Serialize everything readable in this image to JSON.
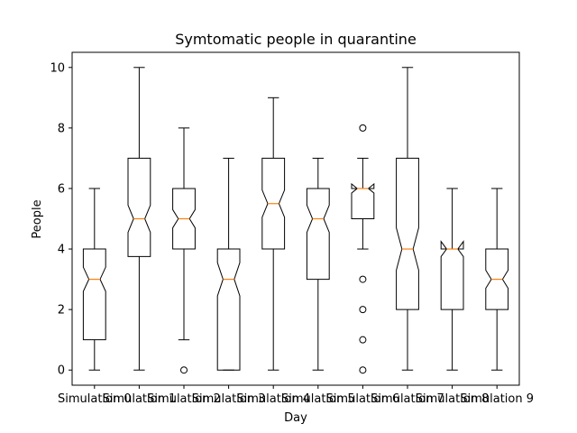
{
  "chart_data": {
    "type": "boxplot",
    "title": "Symtomatic people in quarantine",
    "xlabel": "Day",
    "ylabel": "People",
    "ylim": [
      -0.5,
      10.5
    ],
    "yticks": [
      0,
      2,
      4,
      6,
      8,
      10
    ],
    "notched": true,
    "median_color": "#ff7f0e",
    "categories": [
      "Simulation 0",
      "Simulation 1",
      "Simulation 2",
      "Simulation 3",
      "Simulation 4",
      "Simulation 5",
      "Simulation 6",
      "Simulation 7",
      "Simulation 8",
      "Simulation 9"
    ],
    "boxes": [
      {
        "q1": 1,
        "median": 3,
        "q3": 4,
        "notch_lo": 2.6,
        "notch_hi": 3.4,
        "whislo": 0,
        "whishi": 6,
        "fliers": []
      },
      {
        "q1": 3.75,
        "median": 5,
        "q3": 7,
        "notch_lo": 4.55,
        "notch_hi": 5.45,
        "whislo": 0,
        "whishi": 10,
        "fliers": []
      },
      {
        "q1": 4,
        "median": 5,
        "q3": 6,
        "notch_lo": 4.7,
        "notch_hi": 5.3,
        "whislo": 1,
        "whishi": 8,
        "fliers": [
          0
        ]
      },
      {
        "q1": 0,
        "median": 3,
        "q3": 4,
        "notch_lo": 2.45,
        "notch_hi": 3.55,
        "whislo": 0,
        "whishi": 7,
        "fliers": []
      },
      {
        "q1": 4,
        "median": 5.5,
        "q3": 7,
        "notch_lo": 5.05,
        "notch_hi": 5.95,
        "whislo": 0,
        "whishi": 9,
        "fliers": []
      },
      {
        "q1": 3,
        "median": 5,
        "q3": 6,
        "notch_lo": 4.55,
        "notch_hi": 5.45,
        "whislo": 0,
        "whishi": 7,
        "fliers": []
      },
      {
        "q1": 5,
        "median": 6,
        "q3": 6,
        "notch_lo": 5.85,
        "notch_hi": 6.15,
        "whislo": 4,
        "whishi": 7,
        "fliers": [
          0,
          1,
          2,
          3,
          8
        ]
      },
      {
        "q1": 2,
        "median": 4,
        "q3": 7,
        "notch_lo": 3.3,
        "notch_hi": 4.7,
        "whislo": 0,
        "whishi": 10,
        "fliers": []
      },
      {
        "q1": 2,
        "median": 4,
        "q3": 4,
        "notch_lo": 3.75,
        "notch_hi": 4.25,
        "whislo": 0,
        "whishi": 6,
        "fliers": []
      },
      {
        "q1": 2,
        "median": 3,
        "q3": 4,
        "notch_lo": 2.7,
        "notch_hi": 3.3,
        "whislo": 0,
        "whishi": 6,
        "fliers": []
      }
    ]
  }
}
